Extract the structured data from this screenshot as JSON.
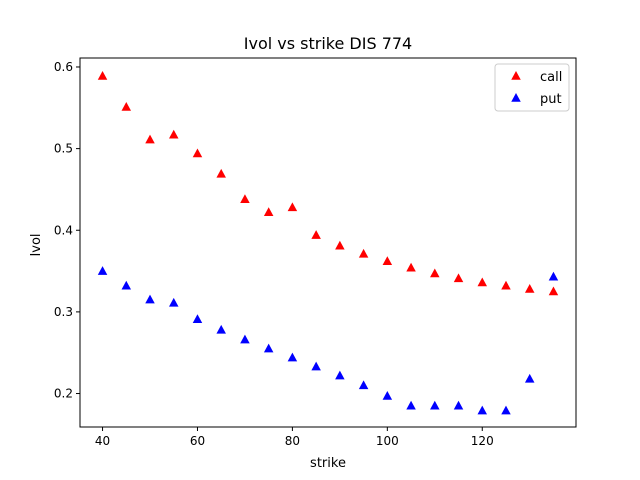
{
  "chart_data": {
    "type": "scatter",
    "title": "Ivol vs strike DIS 774",
    "xlabel": "strike",
    "ylabel": "Ivol",
    "xlim": [
      35.25,
      139.75
    ],
    "ylim": [
      0.159,
      0.611
    ],
    "xticks": [
      40,
      60,
      80,
      100,
      120
    ],
    "yticks": [
      0.2,
      0.3,
      0.4,
      0.5,
      0.6
    ],
    "xtick_labels": [
      "40",
      "60",
      "80",
      "100",
      "120"
    ],
    "ytick_labels": [
      "0.2",
      "0.3",
      "0.4",
      "0.5",
      "0.6"
    ],
    "grid": false,
    "legend_position": "top-right",
    "marker": "triangle-up",
    "series": [
      {
        "name": "call",
        "color": "#ff0000",
        "x": [
          40,
          45,
          50,
          55,
          60,
          65,
          70,
          75,
          80,
          85,
          90,
          95,
          100,
          105,
          110,
          115,
          120,
          125,
          130,
          135
        ],
        "y": [
          0.589,
          0.551,
          0.511,
          0.517,
          0.494,
          0.469,
          0.438,
          0.422,
          0.428,
          0.394,
          0.381,
          0.371,
          0.362,
          0.354,
          0.347,
          0.341,
          0.336,
          0.332,
          0.328,
          0.325
        ]
      },
      {
        "name": "put",
        "color": "#0000ff",
        "x": [
          40,
          45,
          50,
          55,
          60,
          65,
          70,
          75,
          80,
          85,
          90,
          95,
          100,
          105,
          110,
          115,
          120,
          125,
          130,
          135
        ],
        "y": [
          0.35,
          0.332,
          0.315,
          0.311,
          0.291,
          0.278,
          0.266,
          0.255,
          0.244,
          0.233,
          0.222,
          0.21,
          0.197,
          0.185,
          0.185,
          0.185,
          0.179,
          0.179,
          0.218,
          0.343
        ]
      }
    ]
  }
}
